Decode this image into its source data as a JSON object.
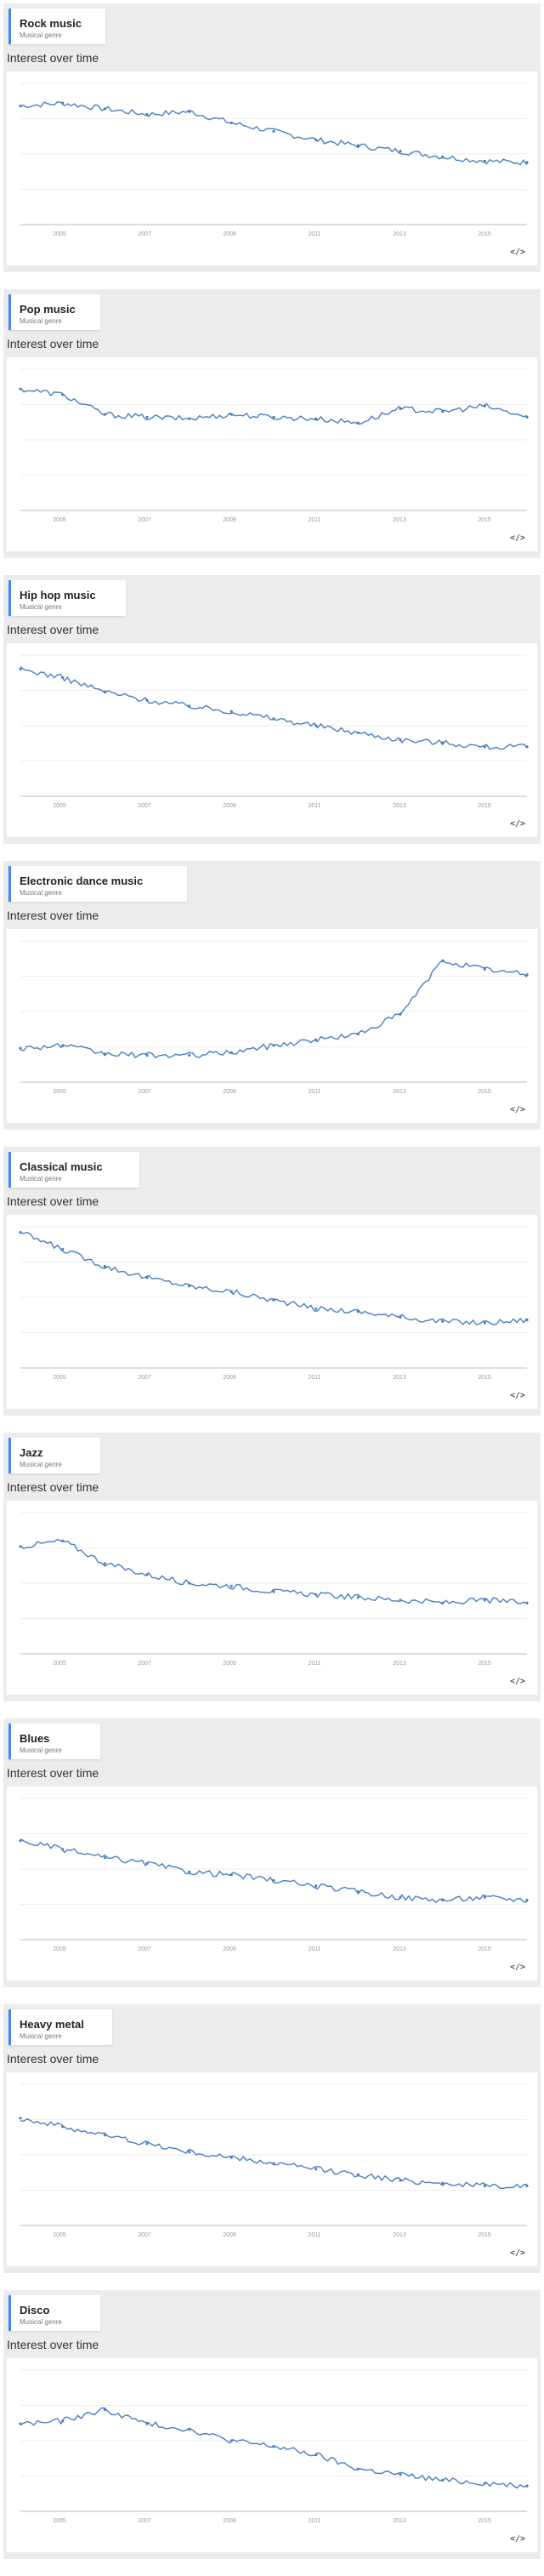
{
  "section_title": "Interest over time",
  "x_ticks": [
    "2005",
    "2007",
    "2009",
    "2011",
    "2013",
    "2015"
  ],
  "series_color": "#4a7fc1",
  "accent_color": "#4285f4",
  "embed_icon": "embed-code-icon",
  "chart_data": [
    {
      "type": "line",
      "term": "Rock music",
      "subtitle": "Musical genre",
      "ylim": [
        0,
        100
      ],
      "x": [
        "2004",
        "2005",
        "2006",
        "2007",
        "2008",
        "2009",
        "2010",
        "2011",
        "2012",
        "2013",
        "2014",
        "2015",
        "2016"
      ],
      "values": [
        84,
        86,
        82,
        78,
        80,
        72,
        66,
        60,
        56,
        52,
        48,
        45,
        44
      ]
    },
    {
      "type": "line",
      "term": "Pop music",
      "subtitle": "Musical genre",
      "ylim": [
        0,
        100
      ],
      "x": [
        "2004",
        "2005",
        "2006",
        "2007",
        "2008",
        "2009",
        "2010",
        "2011",
        "2012",
        "2013",
        "2014",
        "2015",
        "2016"
      ],
      "values": [
        86,
        82,
        68,
        66,
        65,
        68,
        66,
        65,
        62,
        72,
        70,
        74,
        66
      ]
    },
    {
      "type": "line",
      "term": "Hip hop music",
      "subtitle": "Musical genre",
      "ylim": [
        0,
        100
      ],
      "x": [
        "2004",
        "2005",
        "2006",
        "2007",
        "2008",
        "2009",
        "2010",
        "2011",
        "2012",
        "2013",
        "2014",
        "2015",
        "2016"
      ],
      "values": [
        90,
        84,
        74,
        68,
        64,
        60,
        55,
        50,
        45,
        40,
        38,
        35,
        35
      ]
    },
    {
      "type": "line",
      "term": "Electronic dance music",
      "subtitle": "Musical genre",
      "ylim": [
        0,
        100
      ],
      "x": [
        "2004",
        "2005",
        "2006",
        "2007",
        "2008",
        "2009",
        "2010",
        "2011",
        "2012",
        "2013",
        "2014",
        "2015",
        "2016"
      ],
      "values": [
        24,
        26,
        20,
        19,
        19,
        21,
        26,
        30,
        34,
        48,
        86,
        80,
        76
      ]
    },
    {
      "type": "line",
      "term": "Classical music",
      "subtitle": "Musical genre",
      "ylim": [
        0,
        100
      ],
      "x": [
        "2004",
        "2005",
        "2006",
        "2007",
        "2008",
        "2009",
        "2010",
        "2011",
        "2012",
        "2013",
        "2014",
        "2015",
        "2016"
      ],
      "values": [
        96,
        84,
        72,
        64,
        58,
        54,
        48,
        42,
        40,
        36,
        33,
        32,
        34
      ]
    },
    {
      "type": "line",
      "term": "Jazz",
      "subtitle": "Musical genre",
      "ylim": [
        0,
        100
      ],
      "x": [
        "2004",
        "2005",
        "2006",
        "2007",
        "2008",
        "2009",
        "2010",
        "2011",
        "2012",
        "2013",
        "2014",
        "2015",
        "2016"
      ],
      "values": [
        76,
        80,
        64,
        56,
        50,
        48,
        44,
        42,
        40,
        38,
        36,
        38,
        36
      ]
    },
    {
      "type": "line",
      "term": "Blues",
      "subtitle": "Musical genre",
      "ylim": [
        0,
        100
      ],
      "x": [
        "2004",
        "2005",
        "2006",
        "2007",
        "2008",
        "2009",
        "2010",
        "2011",
        "2012",
        "2013",
        "2014",
        "2015",
        "2016"
      ],
      "values": [
        70,
        64,
        58,
        54,
        48,
        46,
        42,
        38,
        34,
        30,
        28,
        30,
        28
      ]
    },
    {
      "type": "line",
      "term": "Heavy metal",
      "subtitle": "Musical genre",
      "ylim": [
        0,
        100
      ],
      "x": [
        "2004",
        "2005",
        "2006",
        "2007",
        "2008",
        "2009",
        "2010",
        "2011",
        "2012",
        "2013",
        "2014",
        "2015",
        "2016"
      ],
      "values": [
        76,
        70,
        64,
        58,
        52,
        48,
        44,
        40,
        36,
        32,
        30,
        28,
        28
      ]
    },
    {
      "type": "line",
      "term": "Disco",
      "subtitle": "Musical genre",
      "ylim": [
        0,
        100
      ],
      "x": [
        "2004",
        "2005",
        "2006",
        "2007",
        "2008",
        "2009",
        "2010",
        "2011",
        "2012",
        "2013",
        "2014",
        "2015",
        "2016"
      ],
      "values": [
        62,
        64,
        72,
        62,
        58,
        50,
        46,
        40,
        30,
        26,
        22,
        20,
        18
      ]
    }
  ]
}
